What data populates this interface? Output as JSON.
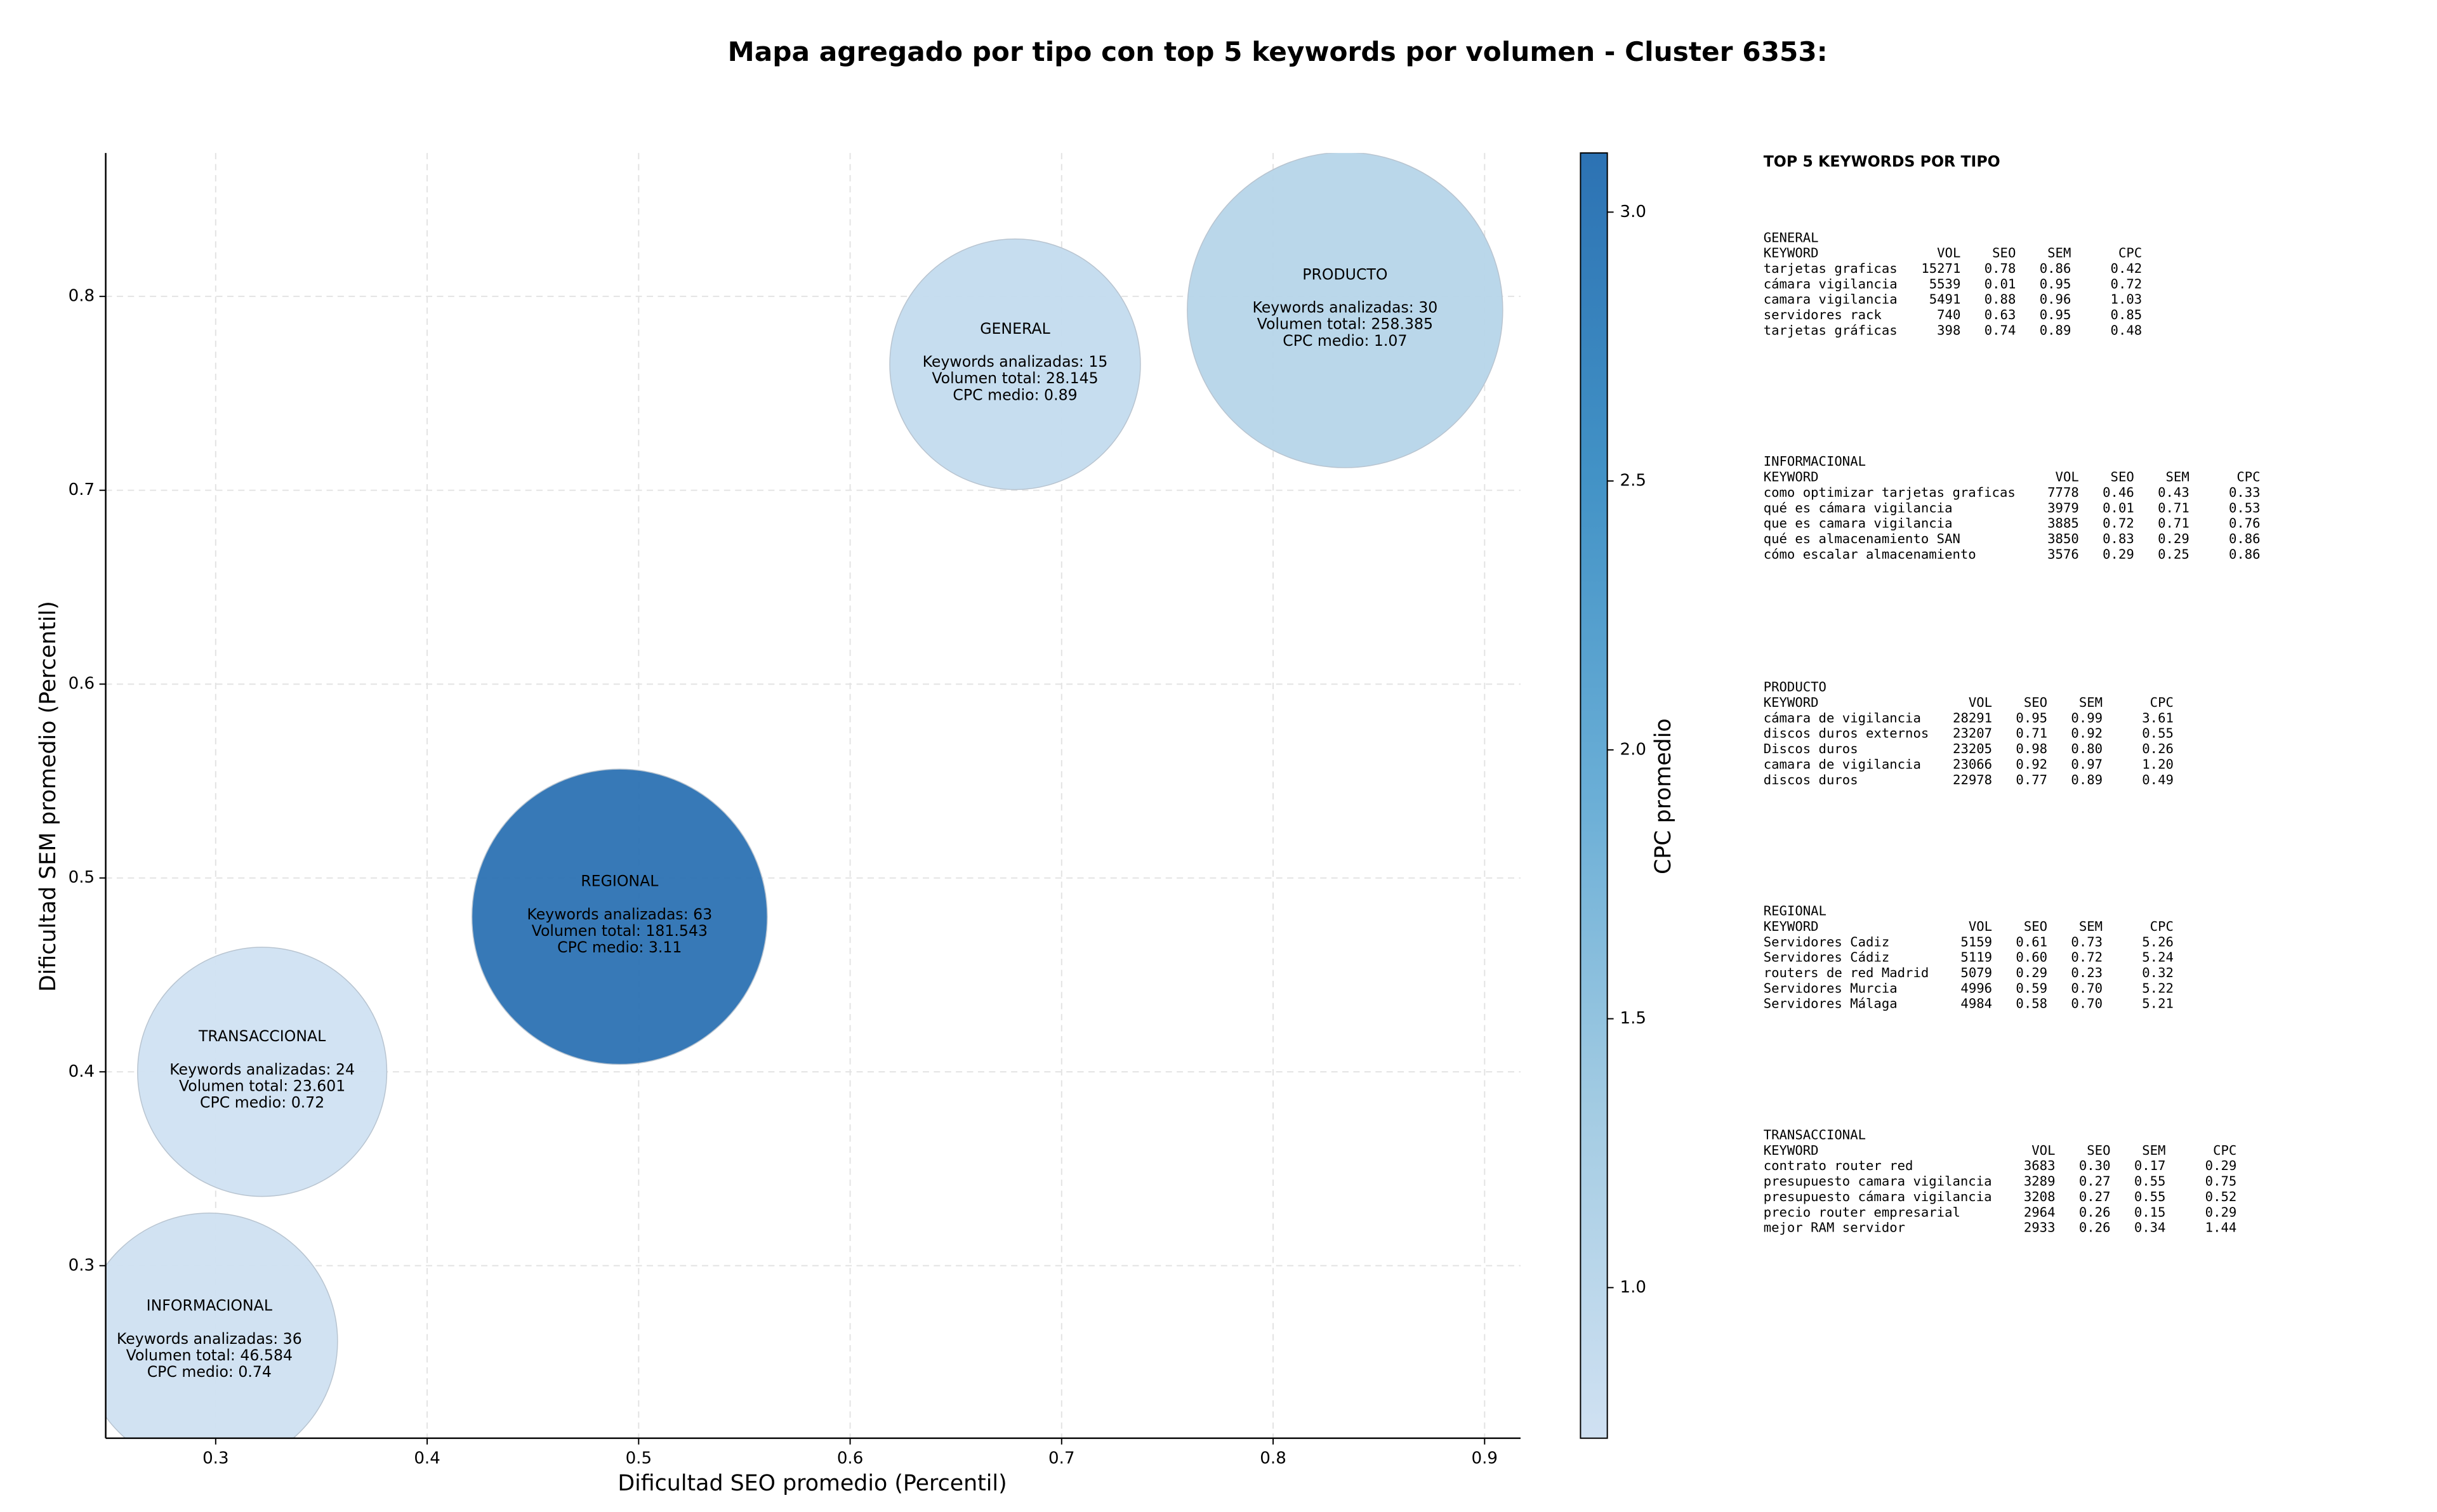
{
  "chart_data": {
    "type": "bubble",
    "title": "Mapa agregado por tipo con top 5 keywords por volumen - Cluster 6353:",
    "xlabel": "Dificultad SEO promedio (Percentil)",
    "ylabel": "Dificultad SEM promedio (Percentil)",
    "xlim": [
      0.248,
      0.917
    ],
    "ylim": [
      0.211,
      0.874
    ],
    "xticks": [
      0.3,
      0.4,
      0.5,
      0.6,
      0.7,
      0.8,
      0.9
    ],
    "yticks": [
      0.3,
      0.4,
      0.5,
      0.6,
      0.7,
      0.8
    ],
    "grid": true,
    "points": [
      {
        "name": "GENERAL",
        "x": 0.678,
        "y": 0.765,
        "size": 28145,
        "cpc": 0.89,
        "keywords": 15,
        "labels": [
          "Keywords analizadas: 15",
          "Volumen total: 28.145",
          "CPC medio: 0.89"
        ]
      },
      {
        "name": "PRODUCTO",
        "x": 0.834,
        "y": 0.793,
        "size": 258385,
        "cpc": 1.07,
        "keywords": 30,
        "labels": [
          "Keywords analizadas: 30",
          "Volumen total: 258.385",
          "CPC medio: 1.07"
        ]
      },
      {
        "name": "REGIONAL",
        "x": 0.491,
        "y": 0.48,
        "size": 181543,
        "cpc": 3.11,
        "keywords": 63,
        "labels": [
          "Keywords analizadas: 63",
          "Volumen total: 181.543",
          "CPC medio: 3.11"
        ]
      },
      {
        "name": "TRANSACCIONAL",
        "x": 0.322,
        "y": 0.4,
        "size": 23601,
        "cpc": 0.72,
        "keywords": 24,
        "labels": [
          "Keywords analizadas: 24",
          "Volumen total: 23.601",
          "CPC medio: 0.72"
        ]
      },
      {
        "name": "INFORMACIONAL",
        "x": 0.297,
        "y": 0.261,
        "size": 46584,
        "cpc": 0.74,
        "keywords": 36,
        "labels": [
          "Keywords analizadas: 36",
          "Volumen total: 46.584",
          "CPC medio: 0.74"
        ]
      }
    ],
    "colorbar": {
      "label": "CPC promedio",
      "lim": [
        0.72,
        3.11
      ],
      "ticks": [
        {
          "value": 1,
          "label": "1.0"
        },
        1.5,
        {
          "value": 2,
          "label": "2.0"
        },
        2.5,
        {
          "value": 3,
          "label": "3.0"
        }
      ],
      "cmap": [
        "#d0e1f2",
        "#a4cce3",
        "#6aaed6",
        "#4292c6",
        "#2c72b3"
      ]
    }
  },
  "table": {
    "title": "TOP 5 KEYWORDS POR TIPO",
    "groups": [
      {
        "name": "GENERAL",
        "columns": [
          "KEYWORD",
          "VOL",
          "SEO",
          "SEM",
          "CPC"
        ],
        "rows": [
          [
            "tarjetas graficas",
            "15271",
            "0.78",
            "0.86",
            "0.42"
          ],
          [
            "cámara vigilancia",
            "5539",
            "0.01",
            "0.95",
            "0.72"
          ],
          [
            "camara vigilancia",
            "5491",
            "0.88",
            "0.96",
            "1.03"
          ],
          [
            "servidores rack",
            "740",
            "0.63",
            "0.95",
            "0.85"
          ],
          [
            "tarjetas gráficas",
            "398",
            "0.74",
            "0.89",
            "0.48"
          ]
        ]
      },
      {
        "name": "INFORMACIONAL",
        "columns": [
          "KEYWORD",
          "VOL",
          "SEO",
          "SEM",
          "CPC"
        ],
        "rows": [
          [
            "como optimizar tarjetas graficas",
            "7778",
            "0.46",
            "0.43",
            "0.33"
          ],
          [
            "qué es cámara vigilancia",
            "3979",
            "0.01",
            "0.71",
            "0.53"
          ],
          [
            "que es camara vigilancia",
            "3885",
            "0.72",
            "0.71",
            "0.76"
          ],
          [
            "qué es almacenamiento SAN",
            "3850",
            "0.83",
            "0.29",
            "0.86"
          ],
          [
            "cómo escalar almacenamiento",
            "3576",
            "0.29",
            "0.25",
            "0.86"
          ]
        ]
      },
      {
        "name": "PRODUCTO",
        "columns": [
          "KEYWORD",
          "VOL",
          "SEO",
          "SEM",
          "CPC"
        ],
        "rows": [
          [
            "cámara de vigilancia",
            "28291",
            "0.95",
            "0.99",
            "3.61"
          ],
          [
            "discos duros externos",
            "23207",
            "0.71",
            "0.92",
            "0.55"
          ],
          [
            "Discos duros",
            "23205",
            "0.98",
            "0.80",
            "0.26"
          ],
          [
            "camara de vigilancia",
            "23066",
            "0.92",
            "0.97",
            "1.20"
          ],
          [
            "discos duros",
            "22978",
            "0.77",
            "0.89",
            "0.49"
          ]
        ]
      },
      {
        "name": "REGIONAL",
        "columns": [
          "KEYWORD",
          "VOL",
          "SEO",
          "SEM",
          "CPC"
        ],
        "rows": [
          [
            "Servidores Cadiz",
            "5159",
            "0.61",
            "0.73",
            "5.26"
          ],
          [
            "Servidores Cádiz",
            "5119",
            "0.60",
            "0.72",
            "5.24"
          ],
          [
            "routers de red Madrid",
            "5079",
            "0.29",
            "0.23",
            "0.32"
          ],
          [
            "Servidores Murcia",
            "4996",
            "0.59",
            "0.70",
            "5.22"
          ],
          [
            "Servidores Málaga",
            "4984",
            "0.58",
            "0.70",
            "5.21"
          ]
        ]
      },
      {
        "name": "TRANSACCIONAL",
        "columns": [
          "KEYWORD",
          "VOL",
          "SEO",
          "SEM",
          "CPC"
        ],
        "rows": [
          [
            "contrato router red",
            "3683",
            "0.30",
            "0.17",
            "0.29"
          ],
          [
            "presupuesto camara vigilancia",
            "3289",
            "0.27",
            "0.55",
            "0.75"
          ],
          [
            "presupuesto cámara vigilancia",
            "3208",
            "0.27",
            "0.55",
            "0.52"
          ],
          [
            "precio router empresarial",
            "2964",
            "0.26",
            "0.15",
            "0.29"
          ],
          [
            "mejor RAM servidor",
            "2933",
            "0.26",
            "0.34",
            "1.44"
          ]
        ]
      }
    ]
  }
}
